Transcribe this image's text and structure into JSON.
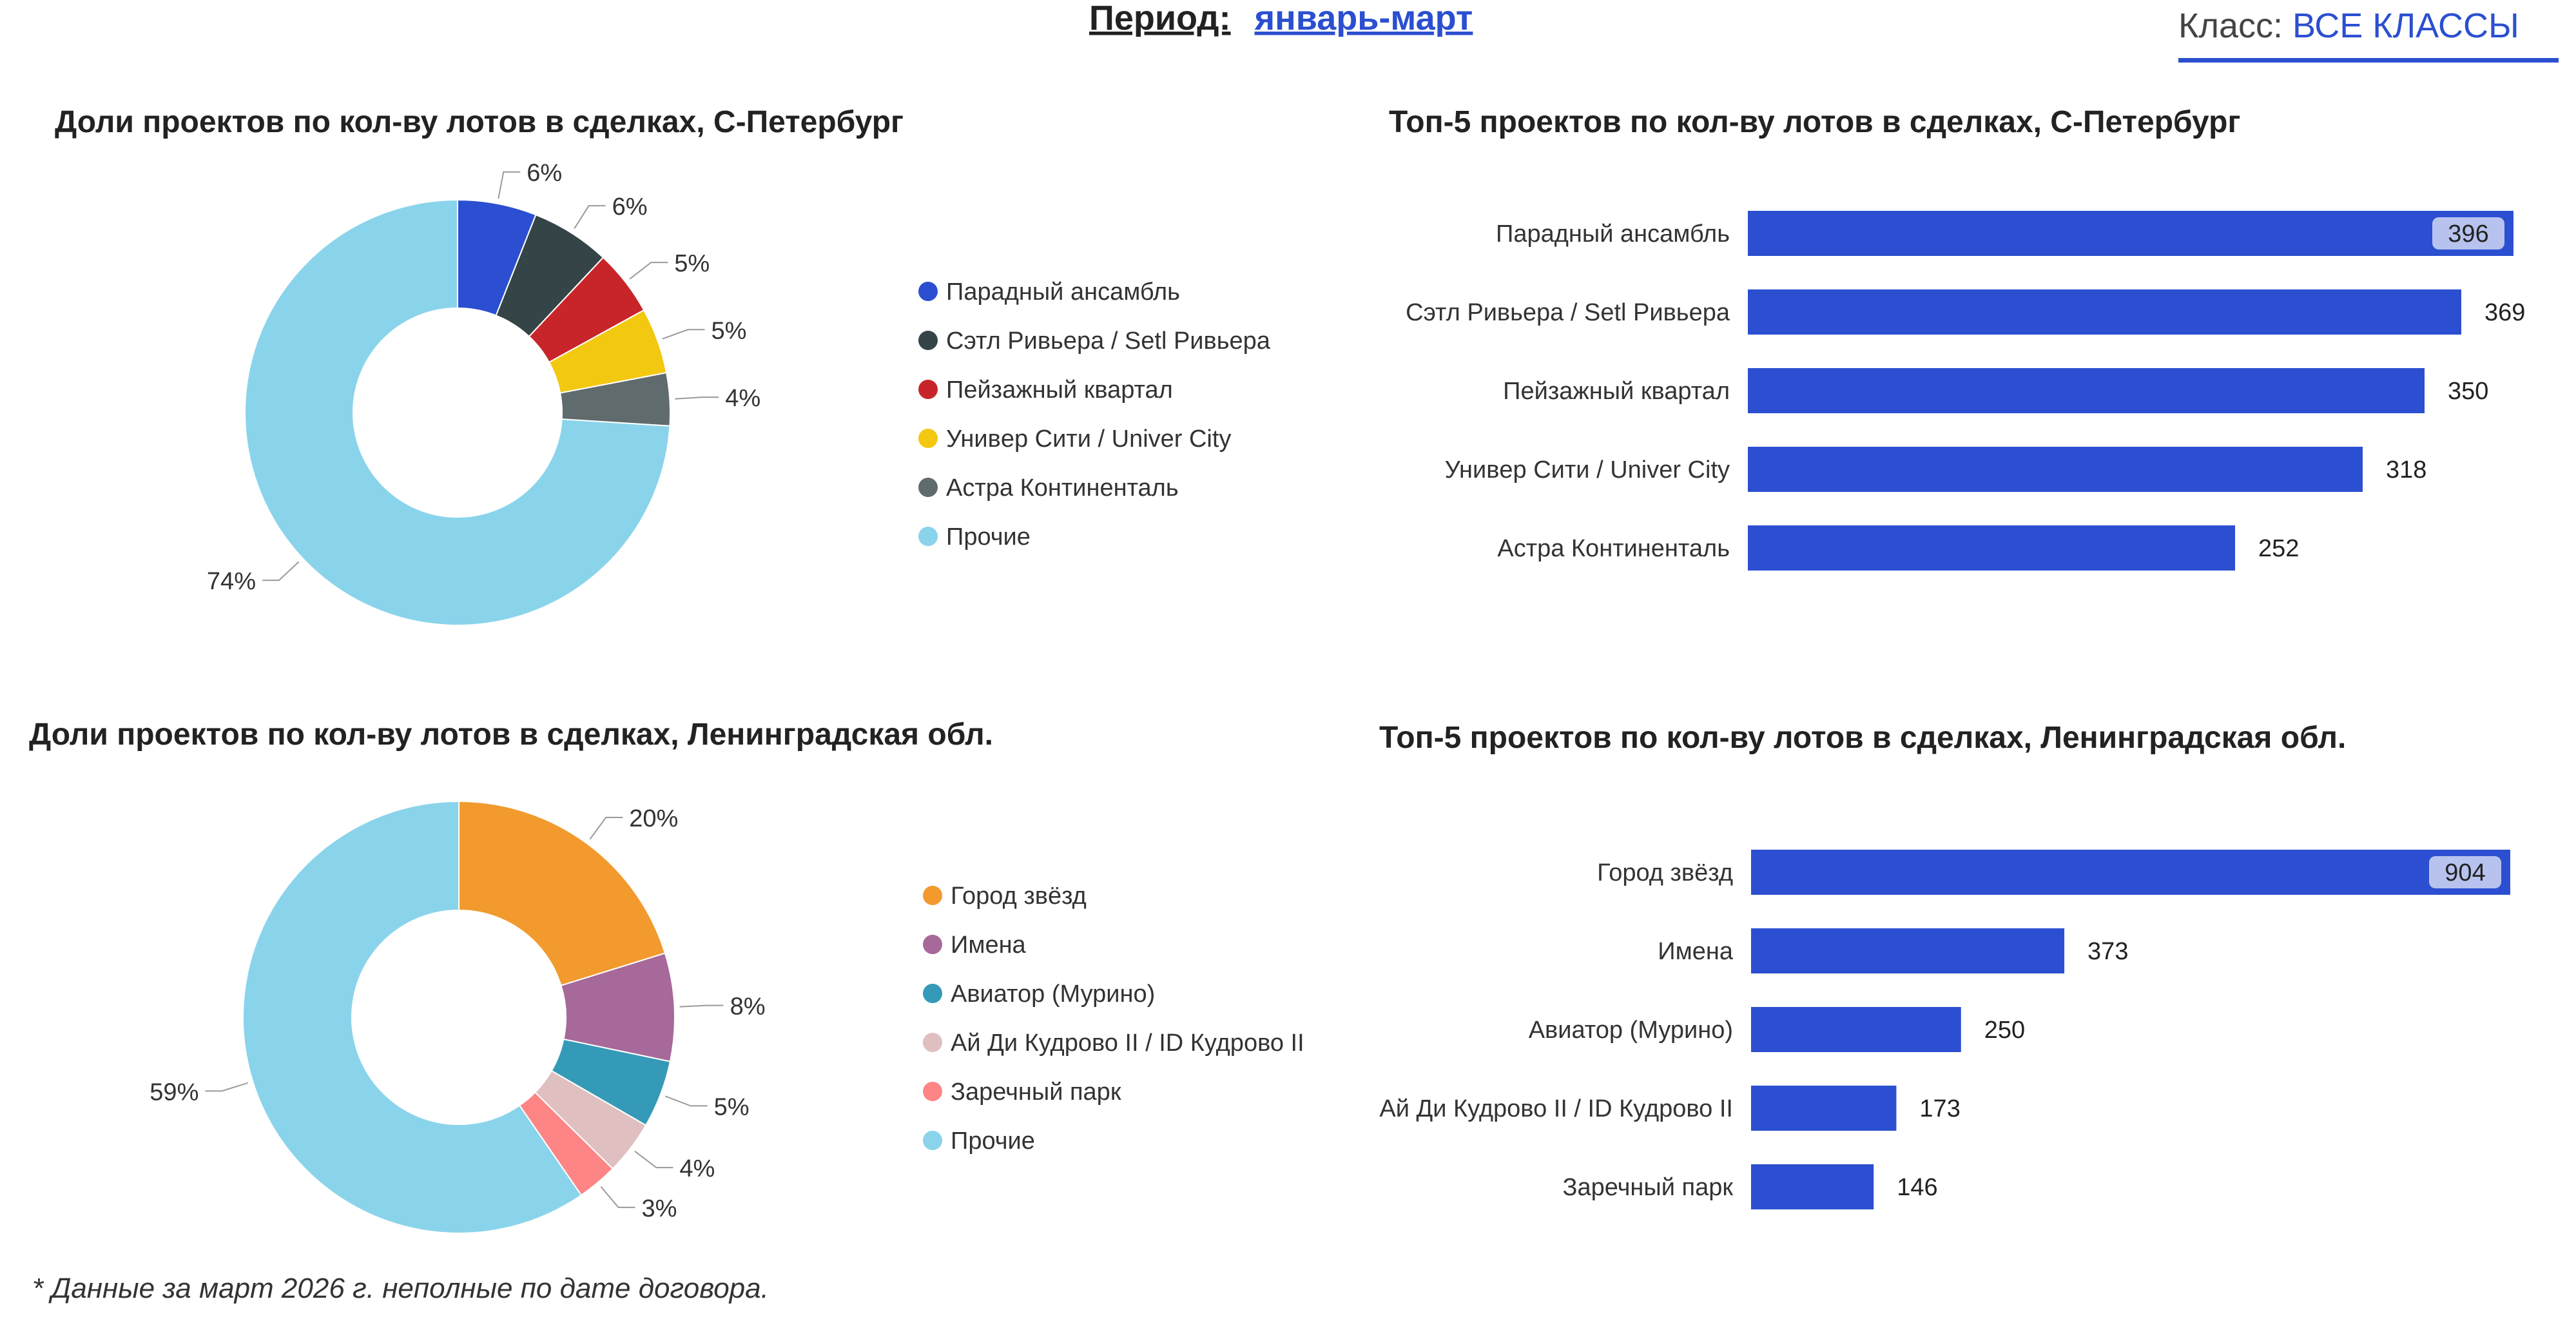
{
  "header": {
    "period_label": "Период:",
    "period_value": "январь-март",
    "class_label": "Класс:",
    "class_value": "ВСЕ КЛАССЫ",
    "accent_color": "#2b4fd0"
  },
  "footnote": "* Данные за март 2026 г. неполные по дате договора.",
  "chart_data": [
    {
      "type": "pie",
      "title": "Доли проектов по кол-ву лотов в сделках, С-Петербург",
      "donut": true,
      "legend_position": "right",
      "slices": [
        {
          "label": "Парадный ансамбль",
          "value": 6,
          "value_label": "6%",
          "color": "#2b4fd0"
        },
        {
          "label": "Сэтл Ривьера / Setl Ривьера",
          "value": 6,
          "value_label": "6%",
          "color": "#354446"
        },
        {
          "label": "Пейзажный квартал",
          "value": 5,
          "value_label": "5%",
          "color": "#c8252a"
        },
        {
          "label": "Унивeр Сити / Univer City",
          "value": 5,
          "value_label": "5%",
          "color": "#f2c811"
        },
        {
          "label": "Астра Континенталь",
          "value": 4,
          "value_label": "4%",
          "color": "#5f6b6d"
        },
        {
          "label": "Прочие",
          "value": 74,
          "value_label": "74%",
          "color": "#8ad4eb"
        }
      ]
    },
    {
      "type": "bar",
      "orientation": "horizontal",
      "title": "Топ-5 проектов по кол-ву лотов в сделках, С-Петербург",
      "categories": [
        "Парадный ансамбль",
        "Сэтл Ривьера / Setl Ривьера",
        "Пейзажный квартал",
        "Унивeр Сити / Univer City",
        "Астра Континенталь"
      ],
      "values": [
        396,
        369,
        350,
        318,
        252
      ],
      "bar_color": "#2b4fd0",
      "xlim": [
        0,
        396
      ]
    },
    {
      "type": "pie",
      "title": "Доли проектов по кол-ву лотов в сделках, Ленинградская обл.",
      "donut": true,
      "legend_position": "right",
      "slices": [
        {
          "label": "Город звёзд",
          "value": 20,
          "value_label": "20%",
          "color": "#f29a2e"
        },
        {
          "label": "Имена",
          "value": 8,
          "value_label": "8%",
          "color": "#a66999"
        },
        {
          "label": "Авиатор (Мурино)",
          "value": 5,
          "value_label": "5%",
          "color": "#3599b8"
        },
        {
          "label": "Ай Ди Кудрово II / ID Кудрово II",
          "value": 4,
          "value_label": "4%",
          "color": "#dfbfbf"
        },
        {
          "label": "Заречный парк",
          "value": 3,
          "value_label": "3%",
          "color": "#fd8585"
        },
        {
          "label": "Прочие",
          "value": 59,
          "value_label": "59%",
          "color": "#8ad4eb"
        }
      ]
    },
    {
      "type": "bar",
      "orientation": "horizontal",
      "title": "Топ-5 проектов по кол-ву лотов в сделках, Ленинградская обл.",
      "categories": [
        "Город звёзд",
        "Имена",
        "Авиатор (Мурино)",
        "Ай Ди Кудрово II / ID Кудрово II",
        "Заречный парк"
      ],
      "values": [
        904,
        373,
        250,
        173,
        146
      ],
      "bar_color": "#2b4fd0",
      "xlim": [
        0,
        904
      ]
    }
  ]
}
